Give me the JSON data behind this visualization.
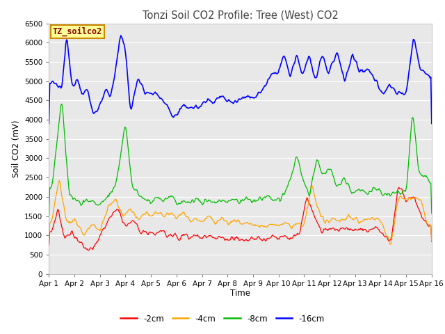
{
  "title": "Tonzi Soil CO2 Profile: Tree (West) CO2",
  "xlabel": "Time",
  "ylabel": "Soil CO2 (mV)",
  "legend_label": "TZ_soilco2",
  "ylim": [
    0,
    6500
  ],
  "yticks": [
    0,
    500,
    1000,
    1500,
    2000,
    2500,
    3000,
    3500,
    4000,
    4500,
    5000,
    5500,
    6000,
    6500
  ],
  "xtick_labels": [
    "Apr 1",
    "Apr 2",
    "Apr 3",
    "Apr 4",
    "Apr 5",
    "Apr 6",
    "Apr 7",
    "Apr 8",
    "Apr 9",
    "Apr 10",
    "Apr 11",
    "Apr 12",
    "Apr 13",
    "Apr 14",
    "Apr 15",
    "Apr 16"
  ],
  "series_colors": [
    "#ff0000",
    "#ffa500",
    "#00bb00",
    "#0000ff"
  ],
  "series_labels": [
    "-2cm",
    "-4cm",
    "-8cm",
    "-16cm"
  ],
  "fig_bg_color": "#ffffff",
  "plot_bg_color": "#e8e8e8",
  "title_color": "#404040",
  "legend_box_color": "#ffff99",
  "legend_box_edge": "#cc8800",
  "legend_text_color": "#8b0000",
  "grid_color": "#ffffff"
}
